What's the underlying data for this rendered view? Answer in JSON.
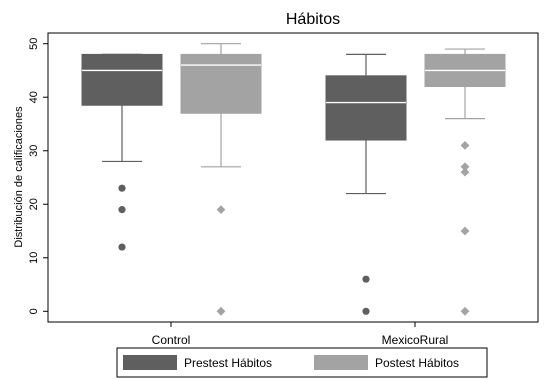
{
  "chart_data": {
    "type": "box",
    "title": "Hábitos",
    "ylabel": "Distribución de calificaciones",
    "xlabel": "",
    "ylim": [
      -2,
      52
    ],
    "yticks": [
      0,
      10,
      20,
      30,
      40,
      50
    ],
    "categories": [
      "Control",
      "MexicoRural"
    ],
    "legend_position": "bottom",
    "grid": false,
    "series": [
      {
        "name": "Prestest Hábitos",
        "color": "#5f5f5f",
        "boxes": [
          {
            "category": "Control",
            "whisker_low": 28,
            "q1": 38.5,
            "median": 45,
            "q3": 48,
            "whisker_high": 48,
            "outliers": [
              23,
              19,
              12
            ]
          },
          {
            "category": "MexicoRural",
            "whisker_low": 22,
            "q1": 32,
            "median": 39,
            "q3": 44,
            "whisker_high": 48,
            "outliers": [
              6,
              0
            ]
          }
        ]
      },
      {
        "name": "Postest Hábitos",
        "color": "#a3a3a3",
        "boxes": [
          {
            "category": "Control",
            "whisker_low": 27,
            "q1": 37,
            "median": 46,
            "q3": 48,
            "whisker_high": 50,
            "outliers": [
              19,
              0
            ]
          },
          {
            "category": "MexicoRural",
            "whisker_low": 36,
            "q1": 42,
            "median": 45,
            "q3": 48,
            "whisker_high": 49,
            "outliers": [
              31,
              27,
              26,
              15,
              0
            ]
          }
        ]
      }
    ]
  }
}
